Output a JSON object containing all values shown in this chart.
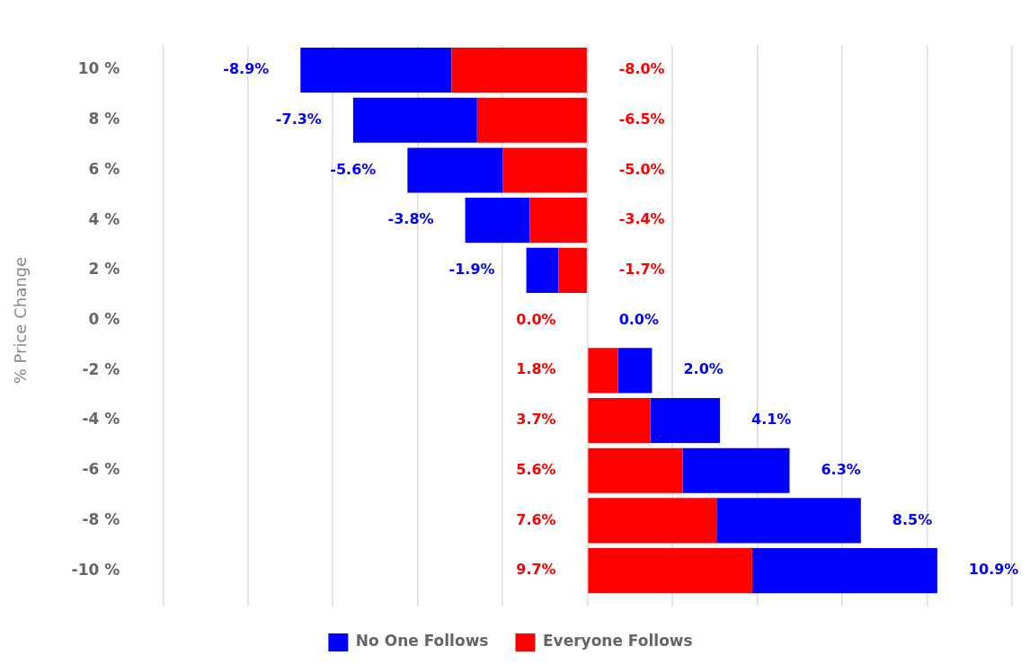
{
  "chart_data": {
    "type": "bar",
    "orientation": "horizontal",
    "stacked": true,
    "ylabel": "% Price Change",
    "categories": [
      "10 %",
      "8 %",
      "6 %",
      "4 %",
      "2 %",
      "0 %",
      "-2 %",
      "-4 %",
      "-6 %",
      "-8 %",
      "-10 %"
    ],
    "series": [
      {
        "name": "Everyone Follows",
        "color": "#ff0000",
        "values": [
          -8.0,
          -6.5,
          -5.0,
          -3.4,
          -1.7,
          0.0,
          1.8,
          3.7,
          5.6,
          7.6,
          9.7
        ],
        "value_labels": [
          "-8.0%",
          "-6.5%",
          "-5.0%",
          "-3.4%",
          "-1.7%",
          "0.0%",
          "1.8%",
          "3.7%",
          "5.6%",
          "7.6%",
          "9.7%"
        ]
      },
      {
        "name": "No One Follows",
        "color": "#0000ff",
        "values": [
          -8.9,
          -7.3,
          -5.6,
          -3.8,
          -1.9,
          0.0,
          2.0,
          4.1,
          6.3,
          8.5,
          10.9
        ],
        "value_labels": [
          "-8.9%",
          "-7.3%",
          "-5.6%",
          "-3.8%",
          "-1.9%",
          "0.0%",
          "2.0%",
          "4.1%",
          "6.3%",
          "8.5%",
          "10.9%"
        ]
      }
    ],
    "xlim": [
      -25,
      25
    ],
    "xticks": [
      -25,
      -20,
      -15,
      -10,
      -5,
      0,
      5,
      10,
      15,
      20,
      25
    ],
    "tick_labels": "y",
    "grid": "x",
    "legend": "bottom"
  }
}
